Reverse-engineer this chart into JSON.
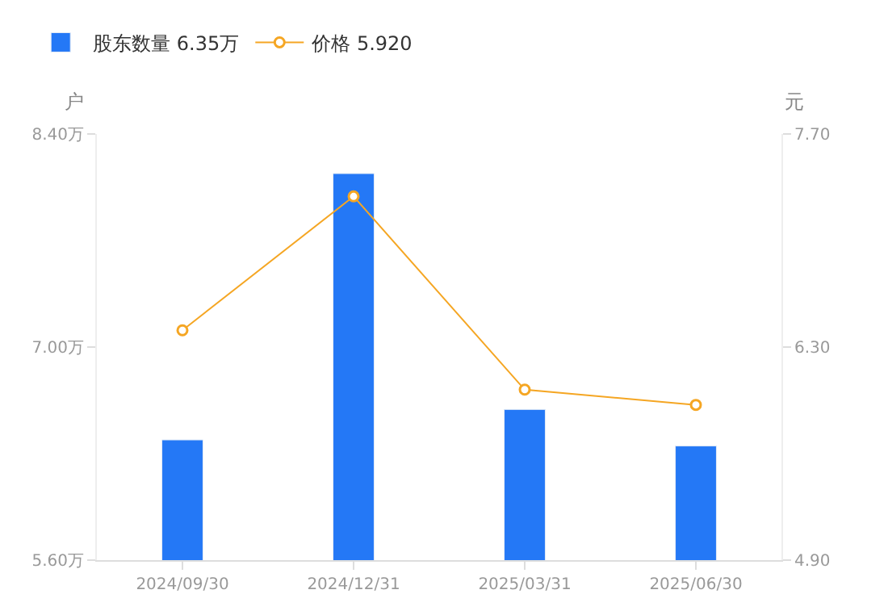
{
  "chart_data": {
    "type": "bar",
    "categories": [
      "2024/09/30",
      "2024/12/31",
      "2025/03/31",
      "2025/06/30"
    ],
    "series": [
      {
        "name": "股东数量 6.35万",
        "color": "#2478f6",
        "values": [
          6.39,
          8.14,
          6.59,
          6.35
        ]
      },
      {
        "name": "价格 5.920",
        "type": "line",
        "axis": "y2",
        "color": "#f5a623",
        "marker": "circle",
        "values": [
          6.41,
          7.29,
          6.02,
          5.92
        ]
      }
    ],
    "ylabel": "户",
    "y2label": "元",
    "ylim": [
      5.6,
      8.4
    ],
    "yticks": [
      {
        "value": 5.6,
        "label": "5.60万"
      },
      {
        "value": 7.0,
        "label": "7.00万"
      },
      {
        "value": 8.4,
        "label": "8.40万"
      }
    ],
    "y2lim": [
      4.9,
      7.7
    ],
    "y2ticks": [
      {
        "value": 4.9,
        "label": "4.90"
      },
      {
        "value": 6.3,
        "label": "6.30"
      },
      {
        "value": 7.7,
        "label": "7.70"
      }
    ],
    "legend": "top left"
  }
}
